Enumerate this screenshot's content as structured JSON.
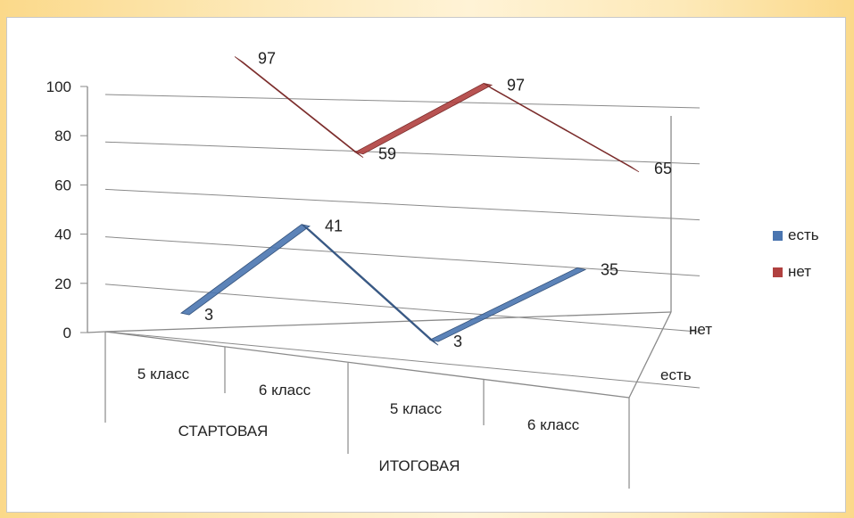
{
  "chart_data": {
    "type": "line",
    "variant": "3d-ribbon",
    "title": "",
    "xlabel": "",
    "ylabel": "",
    "ylim": [
      0,
      100
    ],
    "yticks": [
      0,
      20,
      40,
      60,
      80,
      100
    ],
    "groups": [
      {
        "label": "СТАРТОВАЯ",
        "categories": [
          "5 класс",
          "6 класс"
        ]
      },
      {
        "label": "ИТОГОВАЯ",
        "categories": [
          "5 класс",
          "6 класс"
        ]
      }
    ],
    "categories": [
      "5 класс",
      "6 класс",
      "5 класс",
      "6 класс"
    ],
    "depth_labels": [
      "есть",
      "нет"
    ],
    "series": [
      {
        "name": "есть",
        "color": "#4a75b0",
        "values": [
          3,
          41,
          3,
          35
        ]
      },
      {
        "name": "нет",
        "color": "#b0403f",
        "values": [
          97,
          59,
          97,
          65
        ]
      }
    ],
    "legend_position": "right",
    "grid": true
  },
  "legend": [
    {
      "label": "есть",
      "color": "#4a75b0"
    },
    {
      "label": "нет",
      "color": "#b0403f"
    }
  ]
}
